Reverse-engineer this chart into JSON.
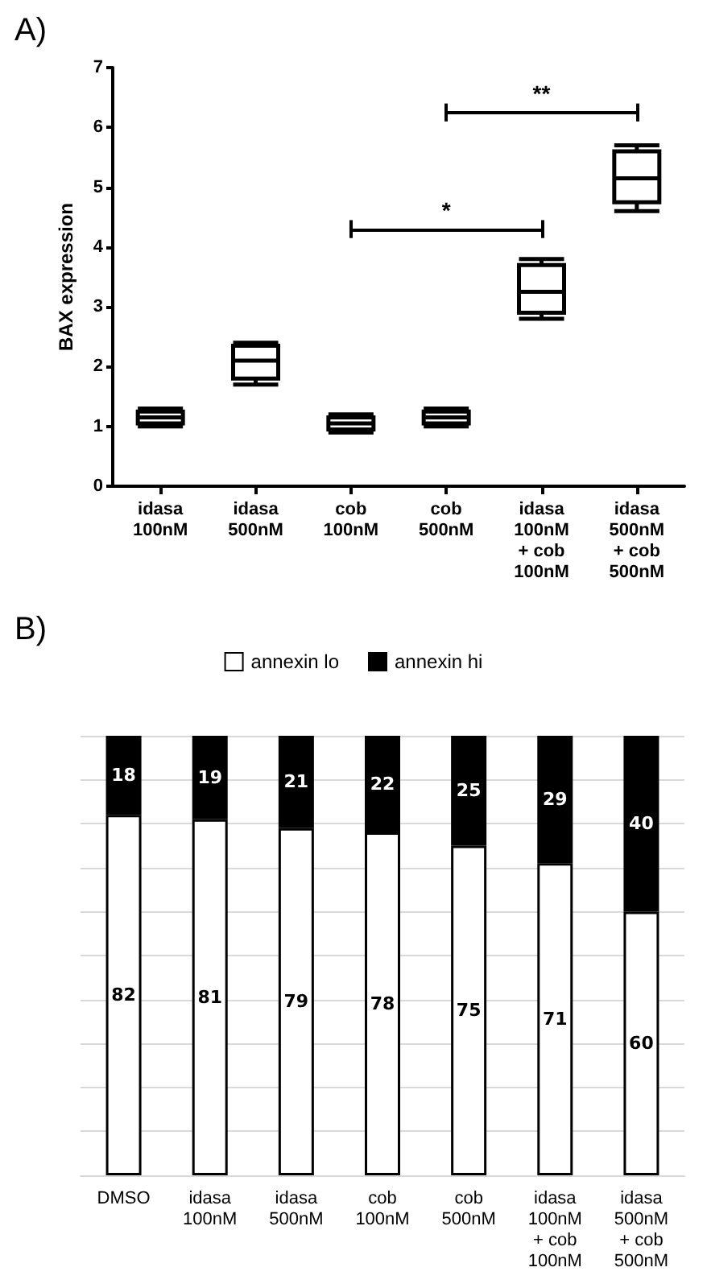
{
  "chart_data": [
    {
      "type": "box",
      "title": "A)",
      "ylabel": "BAX expression",
      "categories": [
        "idasa\n100nM",
        "idasa\n500nM",
        "cob\n100nM",
        "cob\n500nM",
        "idasa\n100nM\n+ cob\n100nM",
        "idasa\n500nM\n+ cob\n500nM"
      ],
      "series": [
        {
          "color": "#000000",
          "boxes": [
            {
              "low": 1.0,
              "q1": 1.05,
              "median": 1.15,
              "q3": 1.25,
              "high": 1.3
            },
            {
              "low": 1.7,
              "q1": 1.8,
              "median": 2.1,
              "q3": 2.35,
              "high": 2.4
            },
            {
              "low": 0.9,
              "q1": 0.95,
              "median": 1.05,
              "q3": 1.15,
              "high": 1.2
            },
            {
              "low": 1.0,
              "q1": 1.05,
              "median": 1.15,
              "q3": 1.25,
              "high": 1.3
            },
            {
              "low": 2.8,
              "q1": 2.9,
              "median": 3.25,
              "q3": 3.7,
              "high": 3.8
            },
            {
              "low": 4.6,
              "q1": 4.75,
              "median": 5.15,
              "q3": 5.6,
              "high": 5.7
            }
          ]
        }
      ],
      "ylim": [
        0,
        7
      ],
      "yticks": [
        0,
        1,
        2,
        3,
        4,
        5,
        6,
        7
      ],
      "grid": false,
      "legend": false,
      "annotations": [
        "*",
        "**"
      ]
    },
    {
      "type": "bar",
      "title": "B)",
      "stacked": true,
      "data_labels": true,
      "categories": [
        "DMSO",
        "idasa\n100nM",
        "idasa\n500nM",
        "cob\n100nM",
        "cob\n500nM",
        "idasa\n100nM\n+ cob\n100nM",
        "idasa\n500nM\n+ cob\n500nM"
      ],
      "series": [
        {
          "name": "annexin lo",
          "color": "#ffffff",
          "values": [
            82,
            81,
            79,
            78,
            75,
            71,
            60
          ]
        },
        {
          "name": "annexin hi",
          "color": "#000000",
          "values": [
            18,
            19,
            21,
            22,
            25,
            29,
            40
          ]
        }
      ],
      "ylim": [
        0,
        100
      ],
      "yticks": [
        {
          "value": 0,
          "label": null
        },
        {
          "value": 10,
          "label": null
        },
        {
          "value": 20,
          "label": null
        },
        {
          "value": 30,
          "label": null
        },
        {
          "value": 40,
          "label": null
        },
        {
          "value": 50,
          "label": null
        },
        {
          "value": 60,
          "label": null
        },
        {
          "value": 70,
          "label": null
        },
        {
          "value": 80,
          "label": null
        },
        {
          "value": 90,
          "label": null
        },
        {
          "value": 100,
          "label": null
        }
      ],
      "tick_labels": "x",
      "grid": "y",
      "legend": "top"
    }
  ]
}
